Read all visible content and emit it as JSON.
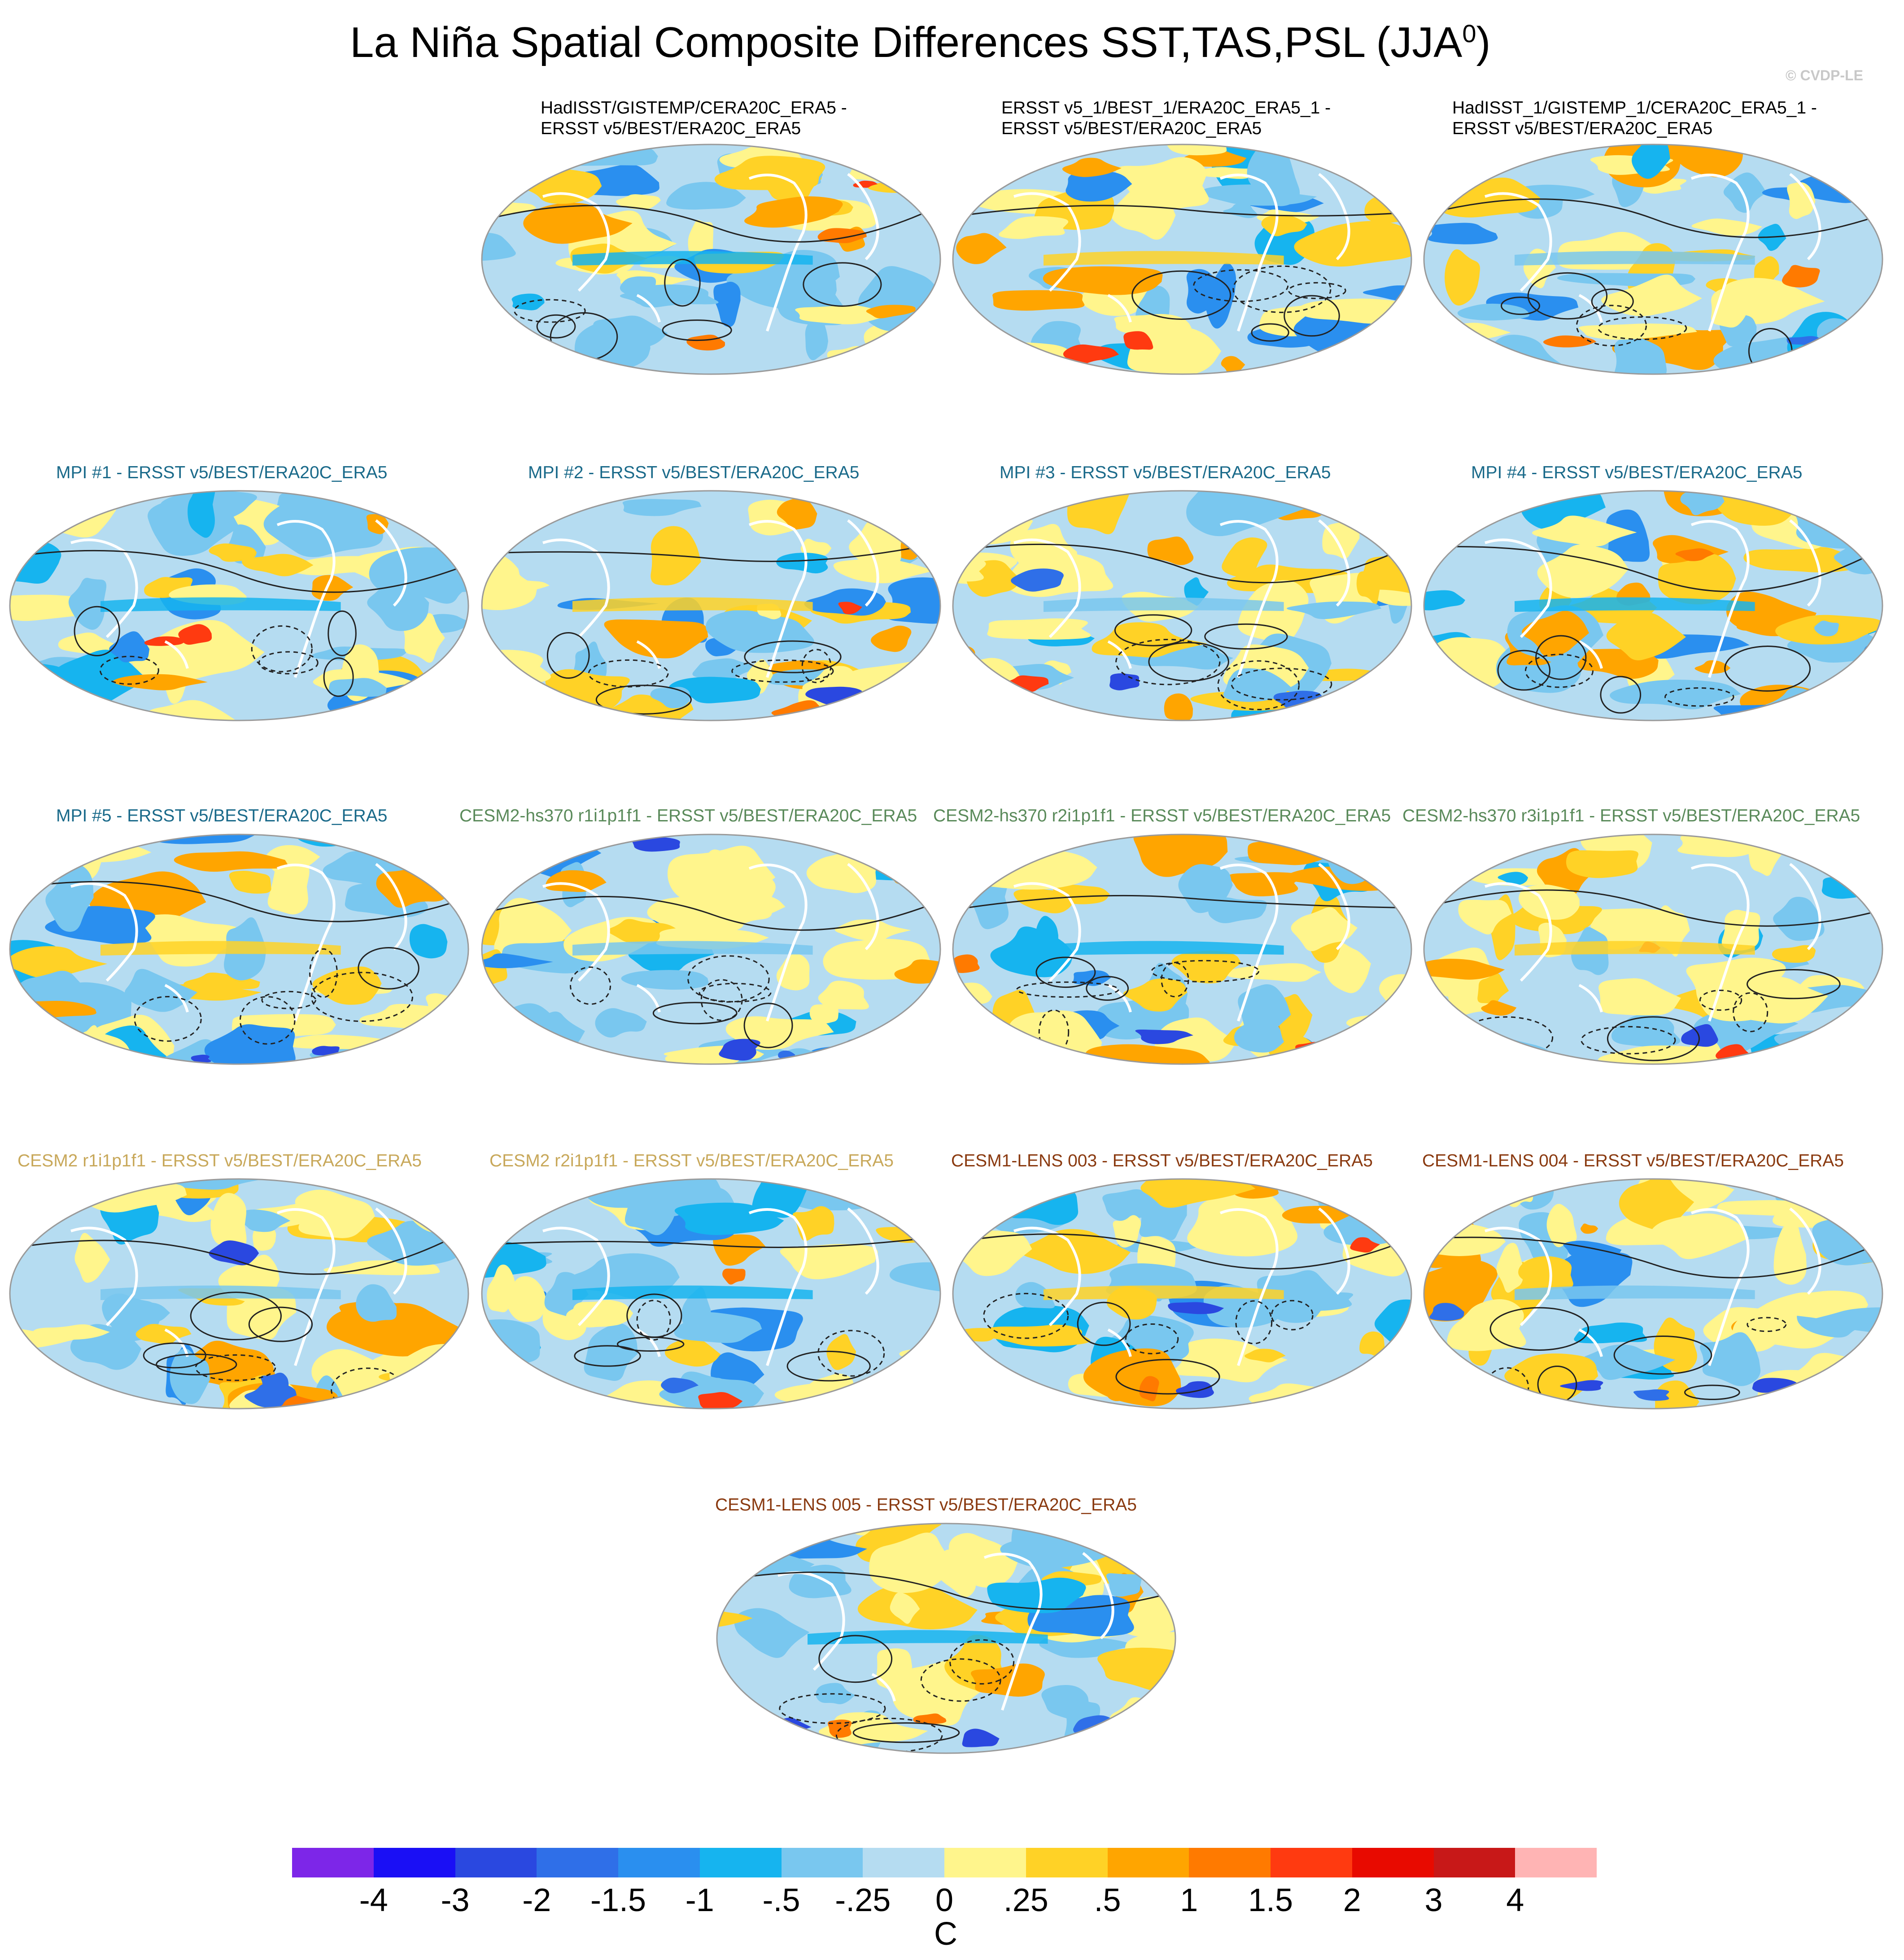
{
  "title": {
    "main": "La Niña Spatial Composite Differences SST,TAS,PSL (JJA",
    "superscript": "0",
    "close": ")"
  },
  "copyright": "© CVDP-LE",
  "palette": {
    "c1": "#7d26e8",
    "c2": "#1a0ff5",
    "c3": "#2a48e0",
    "c4": "#2f6fe8",
    "c5": "#2a8fef",
    "c6": "#16b4ef",
    "c7": "#79c7ef",
    "c8": "#b5dcf1",
    "c9": "#fff58c",
    "c10": "#ffd226",
    "c11": "#ffa500",
    "c12": "#ff7a00",
    "c13": "#ff3a10",
    "c14": "#e80a00",
    "c15": "#c81818",
    "c16": "#ffb4b4"
  },
  "panels": [
    {
      "id": "obs1",
      "lines": [
        "HadISST/GISTEMP/CERA20C_ERA5 -",
        "ERSST v5/BEST/ERA20C_ERA5"
      ],
      "color": "#000000"
    },
    {
      "id": "obs2",
      "lines": [
        "ERSST v5_1/BEST_1/ERA20C_ERA5_1 -",
        "ERSST v5/BEST/ERA20C_ERA5"
      ],
      "color": "#000000"
    },
    {
      "id": "obs3",
      "lines": [
        "HadISST_1/GISTEMP_1/CERA20C_ERA5_1 -",
        "ERSST v5/BEST/ERA20C_ERA5"
      ],
      "color": "#000000"
    },
    {
      "id": "mpi1",
      "lines": [
        "MPI #1 - ERSST v5/BEST/ERA20C_ERA5"
      ],
      "color": "#1a6a8a"
    },
    {
      "id": "mpi2",
      "lines": [
        "MPI #2 - ERSST v5/BEST/ERA20C_ERA5"
      ],
      "color": "#1a6a8a"
    },
    {
      "id": "mpi3",
      "lines": [
        "MPI #3 - ERSST v5/BEST/ERA20C_ERA5"
      ],
      "color": "#1a6a8a"
    },
    {
      "id": "mpi4",
      "lines": [
        "MPI #4 - ERSST v5/BEST/ERA20C_ERA5"
      ],
      "color": "#1a6a8a"
    },
    {
      "id": "mpi5",
      "lines": [
        "MPI #5 - ERSST v5/BEST/ERA20C_ERA5"
      ],
      "color": "#1a6a8a"
    },
    {
      "id": "hs1",
      "lines": [
        "CESM2-hs370 r1i1p1f1 - ERSST v5/BEST/ERA20C_ERA5"
      ],
      "color": "#5a8a5a"
    },
    {
      "id": "hs2",
      "lines": [
        "CESM2-hs370 r2i1p1f1 - ERSST v5/BEST/ERA20C_ERA5"
      ],
      "color": "#5a8a5a"
    },
    {
      "id": "hs3",
      "lines": [
        "CESM2-hs370 r3i1p1f1 - ERSST v5/BEST/ERA20C_ERA5"
      ],
      "color": "#5a8a5a"
    },
    {
      "id": "c2r1",
      "lines": [
        "CESM2 r1i1p1f1 - ERSST v5/BEST/ERA20C_ERA5"
      ],
      "color": "#c8a85a"
    },
    {
      "id": "c2r2",
      "lines": [
        "CESM2 r2i1p1f1 - ERSST v5/BEST/ERA20C_ERA5"
      ],
      "color": "#c8a85a"
    },
    {
      "id": "l003",
      "lines": [
        "CESM1-LENS 003 - ERSST v5/BEST/ERA20C_ERA5"
      ],
      "color": "#8a3a10"
    },
    {
      "id": "l004",
      "lines": [
        "CESM1-LENS 004 - ERSST v5/BEST/ERA20C_ERA5"
      ],
      "color": "#8a3a10"
    },
    {
      "id": "l005",
      "lines": [
        "CESM1-LENS 005 - ERSST v5/BEST/ERA20C_ERA5"
      ],
      "color": "#8a3a10"
    }
  ],
  "colorbar": {
    "ticks": [
      "-4",
      "-3",
      "-2",
      "-1.5",
      "-1",
      "-.5",
      "-.25",
      "0",
      ".25",
      ".5",
      "1",
      "1.5",
      "2",
      "3",
      "4"
    ],
    "unit": "C"
  }
}
